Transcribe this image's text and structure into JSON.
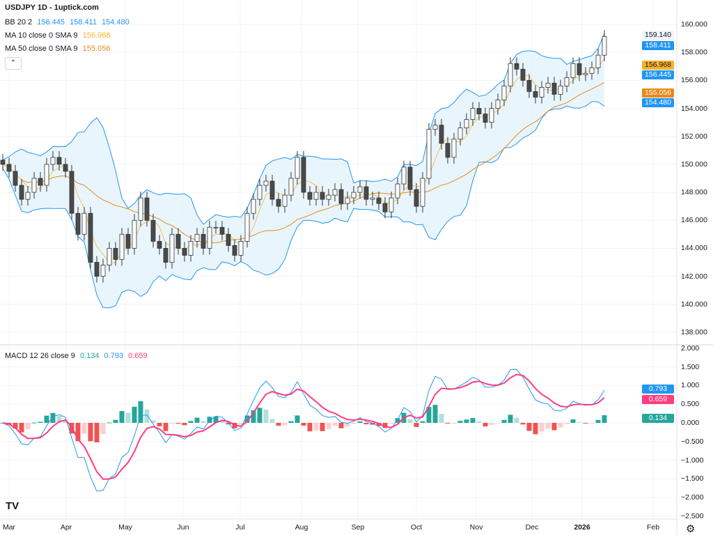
{
  "header": {
    "title": "USDJPY 1D - 1uptick.com"
  },
  "legend": {
    "bb": {
      "label": "BB 20 2",
      "basis": "156.445",
      "upper": "158.411",
      "lower": "154.480"
    },
    "ma10": {
      "label": "MA 10 close 0 SMA 9",
      "value": "156.968"
    },
    "ma50": {
      "label": "MA 50 close 0 SMA 9",
      "value": "155.056"
    },
    "macd": {
      "label": "MACD 12 26 close 9",
      "hist": "0.134",
      "macd": "0.793",
      "signal": "0.659"
    },
    "collapse_icon": "chevron-up-icon"
  },
  "colors": {
    "bb": "#2196f3",
    "bb_fill": "#e3f2fd",
    "ma10": "#f9c04a",
    "ma50": "#e8891c",
    "up": "#ffffff",
    "down": "#4a4a4a",
    "macd": "#2196f3",
    "signal": "#ff3d7f",
    "hist_up": "#26a69a",
    "hist_down": "#ef5350"
  },
  "price_tags": {
    "last": "159.140",
    "bb_upper": "158.411",
    "ma10": "156.968",
    "bb_basis": "156.445",
    "ma50": "155.056",
    "bb_lower": "154.480"
  },
  "macd_tags": {
    "macd": "0.793",
    "signal": "0.659",
    "hist": "0.134"
  },
  "chart_data": {
    "type": "candlestick",
    "symbol": "USDJPY",
    "interval": "1D",
    "price_axis": {
      "ticks": [
        "160.000",
        "158.000",
        "156.000",
        "154.000",
        "152.000",
        "150.000",
        "148.000",
        "146.000",
        "144.000",
        "142.000",
        "140.000",
        "138.000"
      ],
      "ylim": [
        137,
        160.5
      ]
    },
    "macd_axis": {
      "ticks": [
        "2.000",
        "1.500",
        "1.000",
        "0.500",
        "0.000",
        "−0.500",
        "−1.000",
        "−1.500",
        "−2.000",
        "−2.500"
      ],
      "ylim": [
        -2.6,
        2.05
      ]
    },
    "time_axis": [
      "Mar",
      "Apr",
      "May",
      "Jun",
      "Jul",
      "Aug",
      "Sep",
      "Oct",
      "Nov",
      "Dec",
      "2026",
      "Feb"
    ],
    "closes": [
      150,
      149.5,
      148.5,
      147.5,
      148,
      149,
      148.5,
      150,
      150.5,
      150,
      149.5,
      146.5,
      145,
      146.5,
      143,
      142,
      142.8,
      144,
      143.2,
      145,
      144,
      146,
      147.6,
      146,
      144.5,
      144,
      143,
      145,
      144,
      143.5,
      144.5,
      145,
      144,
      145.5,
      145.5,
      145,
      144.2,
      143.5,
      144.5,
      146.5,
      147.5,
      148.5,
      148.8,
      147.5,
      147,
      147.8,
      149,
      150.5,
      148,
      147.5,
      148,
      147.5,
      147.8,
      148.2,
      147.2,
      147.6,
      148,
      148.4,
      147.5,
      147.6,
      147.2,
      146.6,
      147.6,
      148.6,
      149.8,
      148.2,
      147,
      149,
      152.5,
      152.8,
      151.5,
      150.5,
      151.8,
      152.6,
      153.2,
      154,
      153.6,
      153,
      154,
      154.6,
      155.6,
      157.2,
      156.8,
      156,
      155.2,
      154.8,
      155.5,
      155.8,
      155,
      155.6,
      156.2,
      157.2,
      156.4,
      156.5,
      156.9,
      157.8,
      159.14
    ]
  }
}
